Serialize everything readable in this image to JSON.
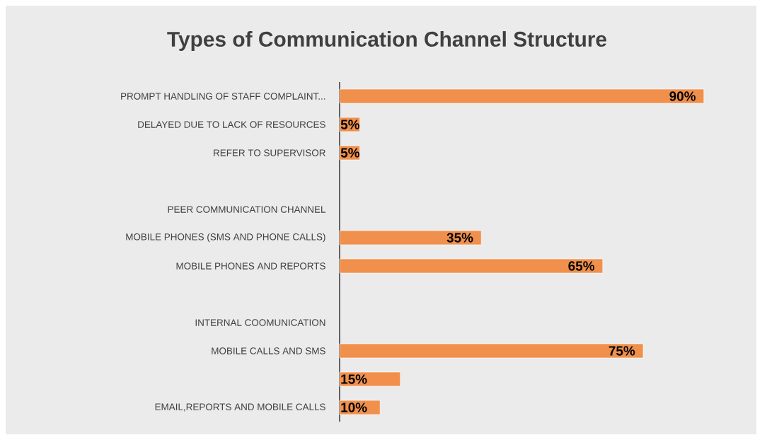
{
  "chart_data": {
    "type": "bar",
    "orientation": "horizontal",
    "title": "Types of Communication Channel Structure",
    "categories": [
      "PROMPT HANDLING OF STAFF COMPLAINT...",
      "DELAYED DUE TO LACK OF RESOURCES",
      "REFER TO SUPERVISOR",
      null,
      "PEER COMMUNICATION CHANNEL",
      "MOBILE PHONES (SMS AND PHONE CALLS)",
      "MOBILE PHONES AND REPORTS",
      null,
      "INTERNAL COOMUNICATION",
      "MOBILE CALLS AND SMS",
      null,
      "EMAIL,REPORTS AND MOBILE CALLS"
    ],
    "values": [
      90,
      5,
      5,
      null,
      null,
      35,
      65,
      null,
      null,
      75,
      15,
      10
    ],
    "value_labels": [
      "90%",
      "5%",
      "5%",
      null,
      null,
      "35%",
      "65%",
      null,
      null,
      "75%",
      "15%",
      "10%"
    ],
    "color": "#f0904c",
    "tick_labels": "y"
  }
}
